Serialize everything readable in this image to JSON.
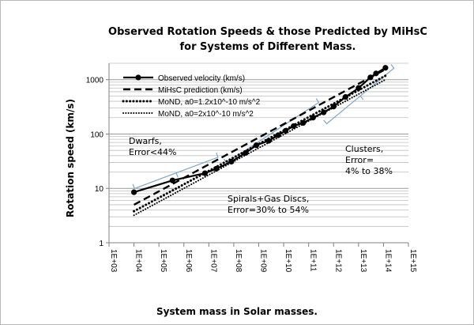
{
  "chart_data": {
    "type": "line",
    "title_line1": "Observed Rotation Speeds & those Predicted by MiHsC",
    "title_line2": "for Systems of Different Mass.",
    "xlabel": "System mass in Solar masses.",
    "ylabel": "Rotation speed (km/s)",
    "x_scale": "log",
    "y_scale": "log",
    "xlim": [
      1000,
      1000000000000000
    ],
    "ylim": [
      1,
      2000
    ],
    "x_ticks": [
      1000.0,
      10000.0,
      100000.0,
      1000000.0,
      10000000.0,
      100000000.0,
      1000000000.0,
      10000000000.0,
      100000000000.0,
      1000000000000.0,
      10000000000000.0,
      100000000000000.0,
      1000000000000000.0
    ],
    "x_tick_labels": [
      "1E+03",
      "1E+04",
      "1E+05",
      "1E+06",
      "1E+07",
      "1E+08",
      "1E+09",
      "1E+10",
      "1E+11",
      "1E+12",
      "1E+13",
      "1E+14",
      "1E+15"
    ],
    "y_ticks": [
      1,
      10,
      100,
      1000
    ],
    "y_tick_labels": [
      "1",
      "10",
      "100",
      "1000"
    ],
    "grid": "horizontal",
    "legend_position": "top-left",
    "series": [
      {
        "name": "Observed velocity (km/s)",
        "style": "solid-markers",
        "color": "#000000",
        "x": [
          10000.0,
          350000.0,
          7000000.0,
          20000000.0,
          80000000.0,
          300000000.0,
          800000000.0,
          2500000000.0,
          6000000000.0,
          12000000000.0,
          25000000000.0,
          60000000000.0,
          150000000000.0,
          400000000000.0,
          1000000000000.0,
          3000000000000.0,
          10000000000000.0,
          30000000000000.0,
          50000000000000.0,
          120000000000000.0
        ],
        "y": [
          8.5,
          14,
          19,
          23,
          31,
          45,
          62,
          75,
          95,
          115,
          140,
          160,
          200,
          250,
          320,
          480,
          700,
          1100,
          1300,
          1650
        ]
      },
      {
        "name": "MiHsC prediction (km/s)",
        "style": "dashed",
        "color": "#000000",
        "x": [
          10000.0,
          120000000000000.0
        ],
        "y": [
          5,
          1550
        ]
      },
      {
        "name": "MoND, a0=1.2x10^-10 m/s^2",
        "style": "dotted-heavy",
        "color": "#000000",
        "x": [
          10000.0,
          120000000000000.0
        ],
        "y": [
          3.8,
          1180
        ]
      },
      {
        "name": "MoND, a0=2x10^-10 m/s^2",
        "style": "dotted-light",
        "color": "#000000",
        "x": [
          10000.0,
          120000000000000.0
        ],
        "y": [
          3.2,
          1000
        ]
      }
    ],
    "annotations": [
      {
        "lines": [
          "Dwarfs,",
          "Error<44%"
        ]
      },
      {
        "lines": [
          "Spirals+Gas Discs,",
          "Error=30% to 54%"
        ]
      },
      {
        "lines": [
          "Clusters,",
          "Error=",
          "4% to 38%"
        ]
      }
    ],
    "colors": {
      "brace": "#7aa6cc",
      "grid": "#bfbfbf",
      "frame": "#b8b8b8"
    }
  }
}
